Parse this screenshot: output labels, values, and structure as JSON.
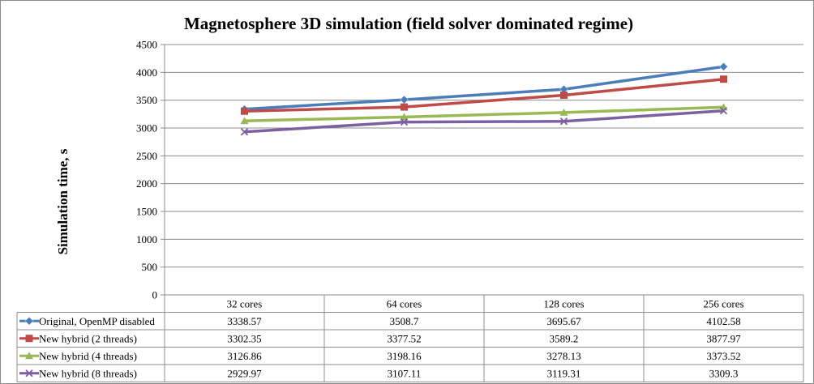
{
  "chart_data": {
    "type": "line",
    "title": "Magnetosphere 3D simulation (field solver dominated regime)",
    "ylabel": "Simulation time, s",
    "xlabel": "",
    "ylim": [
      0,
      4500
    ],
    "yticks": [
      0,
      500,
      1000,
      1500,
      2000,
      2500,
      3000,
      3500,
      4000,
      4500
    ],
    "grid": true,
    "legend": "data-table",
    "categories": [
      "32 cores",
      "64 cores",
      "128 cores",
      "256 cores"
    ],
    "series": [
      {
        "name": "Original, OpenMP disabled",
        "values": [
          3338.57,
          3508.7,
          3695.67,
          4102.58
        ],
        "color": "#4a7ebb",
        "marker": "diamond"
      },
      {
        "name": "New hybrid (2 threads)",
        "values": [
          3302.35,
          3377.52,
          3589.2,
          3877.97
        ],
        "color": "#be4b48",
        "marker": "square"
      },
      {
        "name": "New hybrid (4 threads)",
        "values": [
          3126.86,
          3198.16,
          3278.13,
          3373.52
        ],
        "color": "#98b954",
        "marker": "triangle"
      },
      {
        "name": "New hybrid (8 threads)",
        "values": [
          2929.97,
          3107.11,
          3119.31,
          3309.3
        ],
        "color": "#7d60a0",
        "marker": "x"
      }
    ],
    "table_values": [
      [
        "3338.57",
        "3508.7",
        "3695.67",
        "4102.58"
      ],
      [
        "3302.35",
        "3377.52",
        "3589.2",
        "3877.97"
      ],
      [
        "3126.86",
        "3198.16",
        "3278.13",
        "3373.52"
      ],
      [
        "2929.97",
        "3107.11",
        "3119.31",
        "3309.3"
      ]
    ]
  }
}
